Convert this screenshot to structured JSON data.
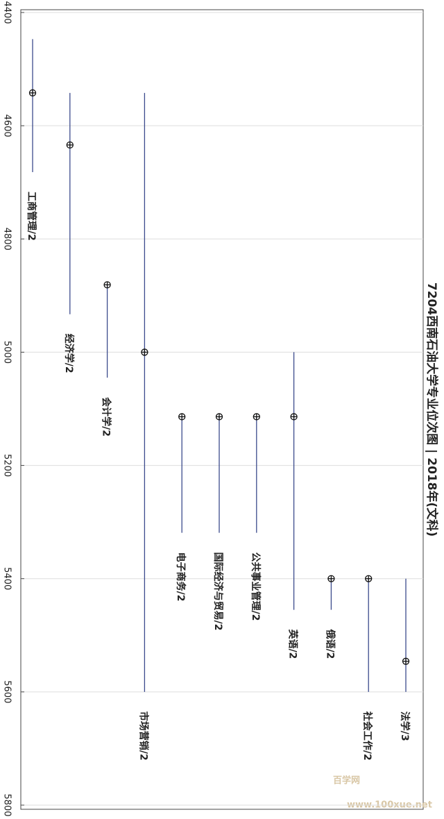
{
  "chart_data": {
    "type": "range",
    "title": "7204西南石油大学专业位次图 | 2018年(文科)",
    "categories": [
      "工商管理/2",
      "经济学/2",
      "会计学/2",
      "市场营销/2",
      "电子商务/2",
      "国际经济与贸易/2",
      "公共事业管理/2",
      "英语/2",
      "俄语/2",
      "社会工作/2",
      "法学/3"
    ],
    "values": [
      4542,
      4634,
      4881,
      5000,
      5114,
      5114,
      5114,
      5114,
      5400,
      5400,
      5546
    ],
    "low": [
      4447,
      4542,
      4881,
      4542,
      5114,
      5114,
      5114,
      5000,
      5400,
      5400,
      5400
    ],
    "high": [
      4682,
      4933,
      5045,
      5600,
      5319,
      5319,
      5319,
      5455,
      5455,
      5600,
      5600
    ],
    "color": "#3b4a8c",
    "marker_color": "#111111",
    "ylim": [
      4400,
      5800
    ],
    "yticks": [
      4400,
      4600,
      4800,
      5000,
      5200,
      5400,
      5600,
      5800
    ],
    "y_inverted": true,
    "grid": true,
    "watermark": [
      "百学网",
      "www.100xue.net"
    ]
  }
}
